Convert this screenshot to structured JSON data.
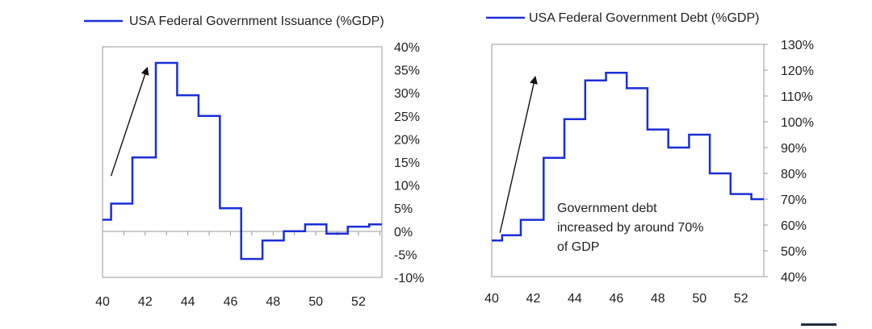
{
  "colors": {
    "series": "#1a2fd6",
    "axis": "#9a9a9a",
    "text": "#222222",
    "arrow": "#111111",
    "corner_mark": "#1f2d3d"
  },
  "chart_data": [
    {
      "type": "line",
      "step": true,
      "legend": "USA Federal Government Issuance (%GDP)",
      "legend_position": "top-left",
      "xlim": [
        40,
        53.1
      ],
      "ylim": [
        -10,
        40
      ],
      "x_ticks": [
        40,
        42,
        44,
        46,
        48,
        50,
        52
      ],
      "x_tick_labels": [
        "40",
        "42",
        "44",
        "46",
        "48",
        "50",
        "52"
      ],
      "y_ticks": [
        40,
        35,
        30,
        25,
        20,
        15,
        10,
        5,
        0,
        -5,
        -10
      ],
      "y_tick_labels": [
        "40%",
        "35%",
        "30%",
        "25%",
        "20%",
        "15%",
        "10%",
        "5%",
        "0%",
        "-5%",
        "-10%"
      ],
      "y_axis_side": "right",
      "grid": false,
      "series": [
        {
          "name": "USA Federal Government Issuance (%GDP)",
          "x": [
            40,
            40.4,
            41.4,
            42.5,
            43.5,
            44.5,
            45.5,
            46.5,
            47.5,
            48.5,
            49.5,
            50.5,
            51.5,
            52.5,
            53.1
          ],
          "y": [
            2.5,
            6,
            16,
            36.5,
            29.5,
            25,
            5,
            -6,
            -2,
            0,
            1.5,
            -0.5,
            1,
            1.5,
            1.5
          ]
        }
      ],
      "annotations": [
        {
          "type": "arrow",
          "from": [
            40.4,
            12
          ],
          "to": [
            42.1,
            35.5
          ]
        }
      ]
    },
    {
      "type": "line",
      "step": true,
      "legend": "USA Federal Government Debt (%GDP)",
      "legend_position": "top-left",
      "xlim": [
        40,
        53.1
      ],
      "ylim": [
        40,
        130
      ],
      "x_ticks": [
        40,
        42,
        44,
        46,
        48,
        50,
        52
      ],
      "x_tick_labels": [
        "40",
        "42",
        "44",
        "46",
        "48",
        "50",
        "52"
      ],
      "y_ticks": [
        130,
        120,
        110,
        100,
        90,
        80,
        70,
        60,
        50,
        40
      ],
      "y_tick_labels": [
        "130%",
        "120%",
        "110%",
        "100%",
        "90%",
        "80%",
        "70%",
        "60%",
        "50%",
        "40%"
      ],
      "y_axis_side": "right",
      "grid": false,
      "series": [
        {
          "name": "USA Federal Government Debt (%GDP)",
          "x": [
            40,
            40.5,
            41.4,
            42.5,
            43.5,
            44.5,
            45.5,
            46.5,
            47.5,
            48.5,
            49.5,
            50.5,
            51.5,
            52.5,
            53.1
          ],
          "y": [
            54,
            56,
            62,
            86,
            101,
            116,
            119,
            113,
            97,
            90,
            95,
            80,
            72,
            70,
            70
          ]
        }
      ],
      "annotations": [
        {
          "type": "arrow",
          "from": [
            40.4,
            57
          ],
          "to": [
            42.1,
            117.5
          ]
        },
        {
          "type": "text",
          "lines": [
            "Government debt",
            "increased by around 70%",
            "of GDP"
          ]
        }
      ]
    }
  ]
}
